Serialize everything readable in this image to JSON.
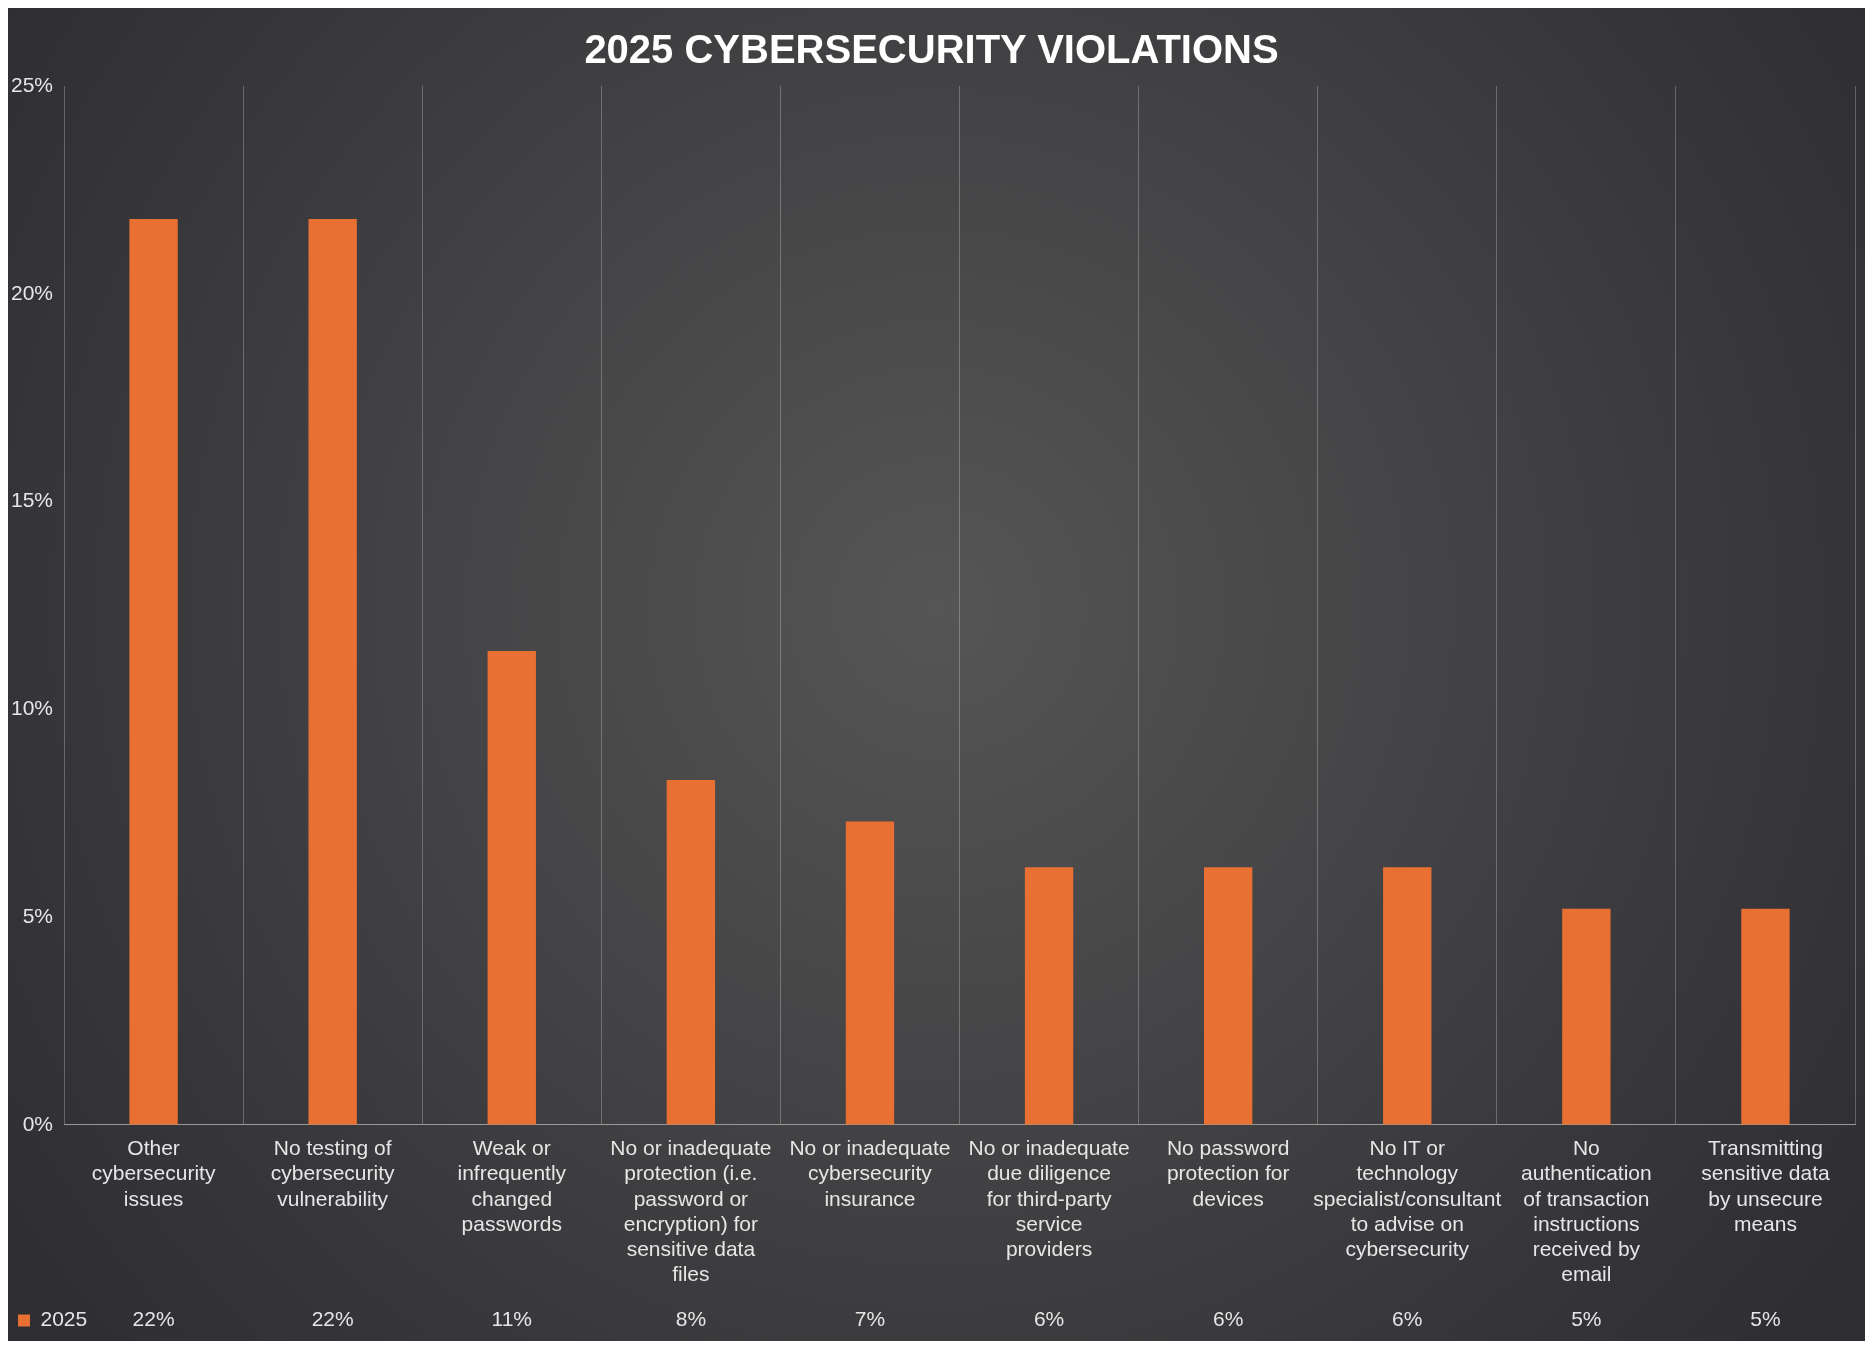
{
  "chart_data": {
    "type": "bar",
    "title": "2025 CYBERSECURITY VIOLATIONS",
    "categories": [
      "Other cybersecurity issues",
      "No testing of cybersecurity vulnerability",
      "Weak or infrequently changed passwords",
      "No or inadequate protection (i.e. password or encryption) for sensitive data files",
      "No or inadequate cybersecurity insurance",
      "No or inadequate due diligence for third-party service providers",
      "No password protection for devices",
      "No IT or technology specialist/consultant to advise on cybersecurity",
      "No authentication of transaction instructions received by email",
      "Transmitting sensitive data by unsecure means"
    ],
    "series": [
      {
        "name": "2025",
        "color": "#e87033",
        "values": [
          21.8,
          21.8,
          11.4,
          8.3,
          7.3,
          6.2,
          6.2,
          6.2,
          5.2,
          5.2
        ],
        "value_labels": [
          "22%",
          "22%",
          "11%",
          "8%",
          "7%",
          "6%",
          "6%",
          "6%",
          "5%",
          "5%"
        ]
      }
    ],
    "ylim": [
      0,
      25
    ],
    "yticks": [
      {
        "value": 0,
        "label": "0%"
      },
      {
        "value": 5,
        "label": "5%"
      },
      {
        "value": 10,
        "label": "10%"
      },
      {
        "value": 15,
        "label": "15%"
      },
      {
        "value": 20,
        "label": "20%"
      },
      {
        "value": 25,
        "label": "25%"
      }
    ],
    "grid": "x",
    "legend": "bottom left"
  }
}
